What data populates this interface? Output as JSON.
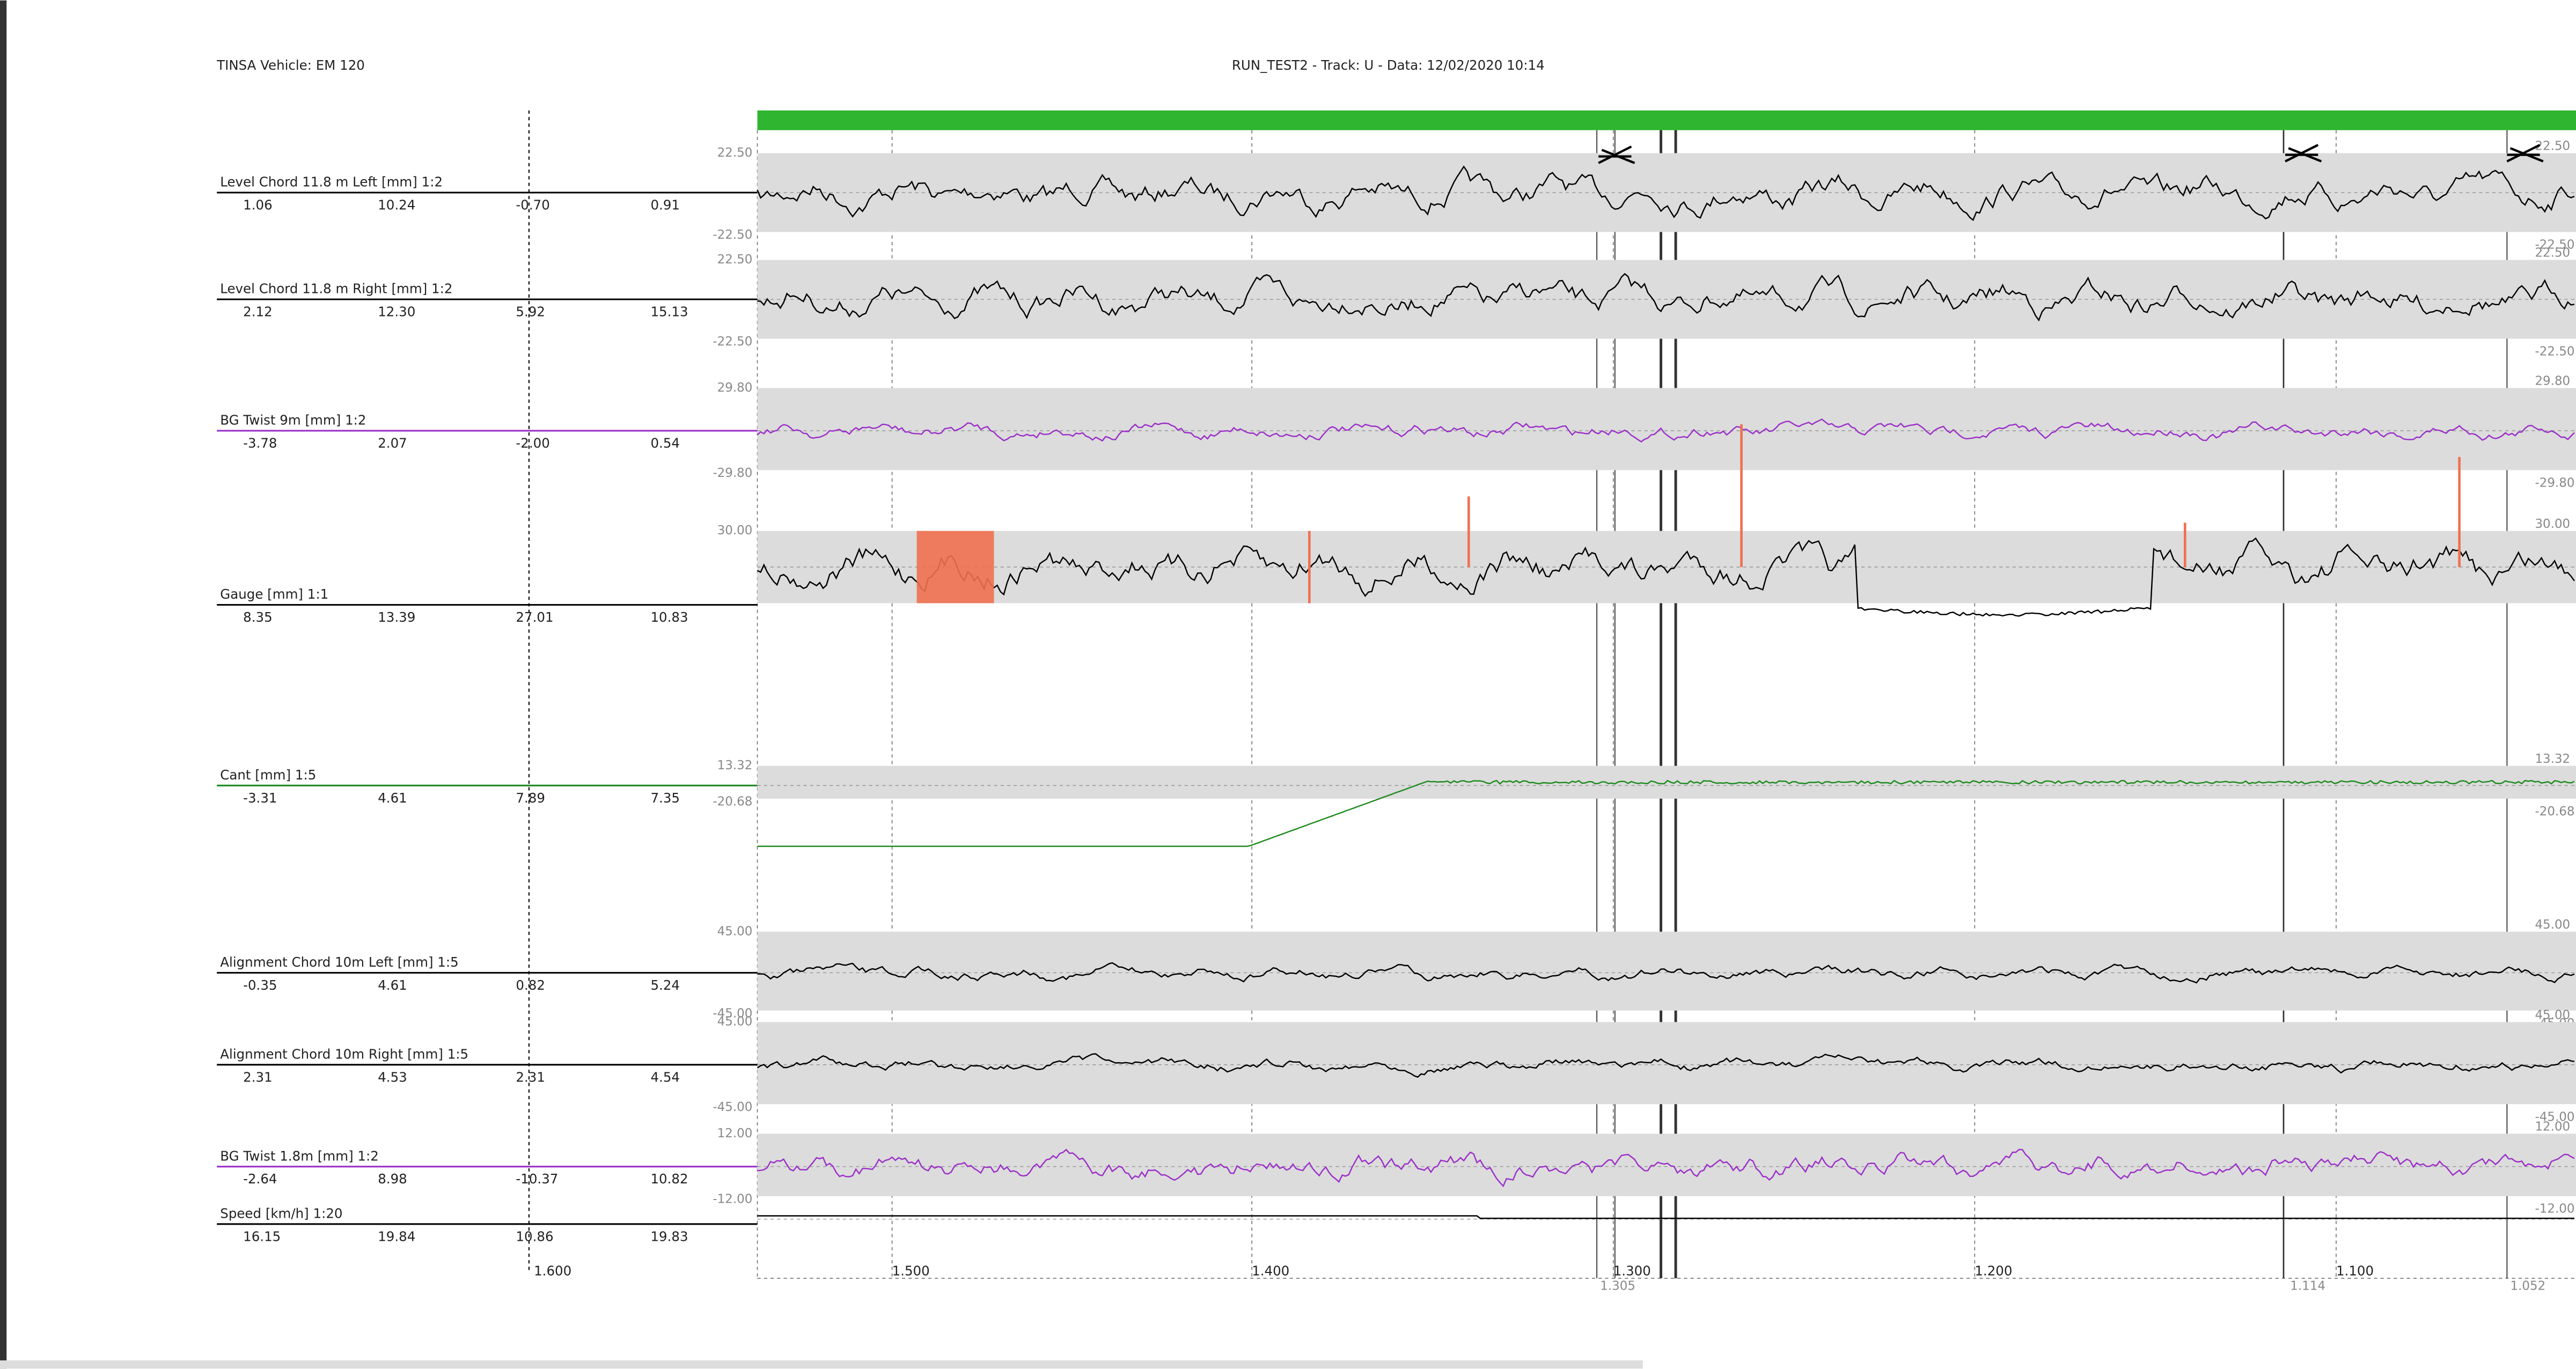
{
  "header": {
    "left": "TINSA   Vehicle: EM 120",
    "center": "RUN_TEST2 - Track: U - Data: 12/02/2020 10:14"
  },
  "channels": [
    {
      "name": "Level Chord 11.8 m Left [mm] 1:2",
      "stats": [
        "1.06",
        "10.24",
        "-0.70",
        "0.91"
      ],
      "scale_top": "22.50",
      "scale_bottom": "-22.50",
      "color": "#000000"
    },
    {
      "name": "Level Chord 11.8 m Right [mm] 1:2",
      "stats": [
        "2.12",
        "12.30",
        "5.92",
        "15.13"
      ],
      "scale_top": "22.50",
      "scale_bottom": "-22.50",
      "color": "#000000"
    },
    {
      "name": "BG Twist 9m [mm] 1:2",
      "stats": [
        "-3.78",
        "2.07",
        "-2.00",
        "0.54"
      ],
      "scale_top": "29.80",
      "scale_bottom": "-29.80",
      "color": "#9b30c8"
    },
    {
      "name": "Gauge [mm] 1:1",
      "stats": [
        "8.35",
        "13.39",
        "27.01",
        "10.83"
      ],
      "scale_top": "30.00",
      "color": "#000000"
    },
    {
      "name": "Cant [mm] 1:5",
      "stats": [
        "-3.31",
        "4.61",
        "7.89",
        "7.35"
      ],
      "scale_top": "13.32",
      "scale_bottom": "-20.68",
      "color": "#1e8a1e"
    },
    {
      "name": "Alignment Chord 10m Left [mm] 1:5",
      "stats": [
        "-0.35",
        "4.61",
        "0.82",
        "5.24"
      ],
      "scale_top": "45.00",
      "scale_bottom": "-45.00",
      "color": "#000000"
    },
    {
      "name": "Alignment Chord 10m Right [mm] 1:5",
      "stats": [
        "2.31",
        "4.53",
        "2.31",
        "4.54"
      ],
      "scale_top": "45.00",
      "scale_bottom": "-45.00",
      "color": "#000000"
    },
    {
      "name": "BG Twist 1.8m [mm] 1:2",
      "stats": [
        "-2.64",
        "8.98",
        "-10.37",
        "10.82"
      ],
      "scale_top": "12.00",
      "scale_bottom": "-12.00",
      "color": "#9b30c8"
    },
    {
      "name": "Speed [km/h] 1:20",
      "stats": [
        "16.15",
        "19.84",
        "10.86",
        "19.83"
      ],
      "color": "#000000"
    }
  ],
  "distance_labels": [
    "1.600",
    "1.500",
    "1.400",
    "1.300",
    "1.200",
    "1.100"
  ],
  "marker_labels": [
    "1.305",
    "1.114",
    "1.052"
  ]
}
